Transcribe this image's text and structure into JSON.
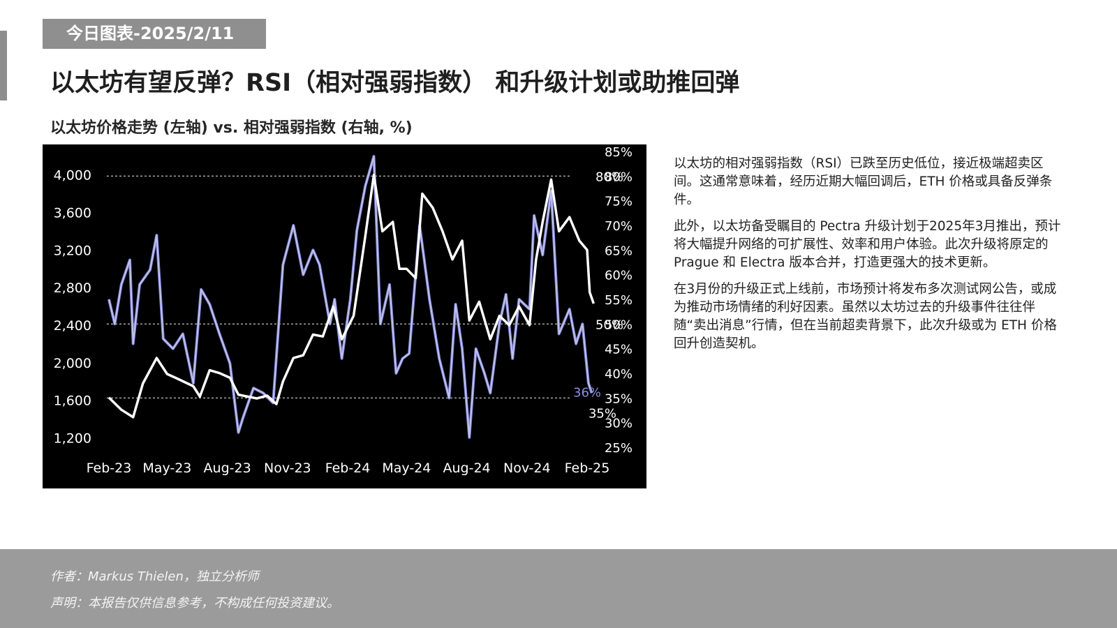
{
  "header": {
    "date_tag": "今日图表-2025/2/11",
    "title": "以太坊有望反弹？RSI（相对强弱指数） 和升级计划或助推回弹",
    "chart_subtitle": "以太坊价格走势 (左轴) vs. 相对强弱指数 (右轴, %)"
  },
  "body": {
    "paragraphs": [
      "以太坊的相对强弱指数（RSI）已跌至历史低位，接近极端超卖区间。这通常意味着，经历近期大幅回调后，ETH 价格或具备反弹条件。",
      "此外，以太坊备受瞩目的 Pectra 升级计划于2025年3月推出，预计将大幅提升网络的可扩展性、效率和用户体验。此次升级将原定的 Prague 和 Electra 版本合并，打造更强大的技术更新。",
      "在3月份的升级正式上线前，市场预计将发布多次测试网公告，或成为推动市场情绪的利好因素。虽然以太坊过去的升级事件往往伴随“卖出消息”行情，但在当前超卖背景下，此次升级或为 ETH 价格回升创造契机。"
    ]
  },
  "footer": {
    "author": "作者：Markus Thielen，独立分析师",
    "disclaimer": "声明：本报告仅供信息参考，不构成任何投资建议。"
  },
  "colors": {
    "chart_background": "#000000",
    "price_line": "#ffffff",
    "rsi_line": "#7b7fd6",
    "rsi_smoothed_line": "#c9cbe8",
    "rsi_label": "#8c8fe0",
    "tag_background": "#8f8f8f",
    "footer_background": "#9b9b9b"
  },
  "chart_data": {
    "type": "line",
    "title": "",
    "x_tick_labels": [
      "Feb-23",
      "May-23",
      "Aug-23",
      "Nov-23",
      "Feb-24",
      "May-24",
      "Aug-24",
      "Nov-24",
      "Feb-25"
    ],
    "x_range": [
      "2023-02",
      "2025-02"
    ],
    "left_axis": {
      "ticks": [
        1200,
        1600,
        2000,
        2400,
        2800,
        3200,
        3600,
        4000
      ],
      "tick_labels": [
        "1,200",
        "1,600",
        "2,000",
        "2,400",
        "2,800",
        "3,200",
        "3,600",
        "4,000"
      ],
      "ylim": [
        1100,
        4250
      ]
    },
    "right_axis": {
      "ticks": [
        25,
        30,
        35,
        40,
        45,
        50,
        55,
        60,
        65,
        70,
        75,
        80,
        85
      ],
      "tick_labels": [
        "25%",
        "30%",
        "35%",
        "40%",
        "45%",
        "50%",
        "55%",
        "60%",
        "65%",
        "70%",
        "75%",
        "80%",
        "85%"
      ],
      "ylim": [
        25,
        85
      ]
    },
    "reference_lines": [
      {
        "axis": "right",
        "value": 80,
        "label": "80%"
      },
      {
        "axis": "right",
        "value": 50,
        "label": "50%"
      },
      {
        "axis": "right",
        "value": 35,
        "label": "35%"
      }
    ],
    "end_annotation": {
      "series": "RSI",
      "value": 36,
      "label": "36%"
    },
    "grid": false,
    "legend": "none",
    "series": [
      {
        "axis": "left",
        "style": "white",
        "points": [
          [
            "2023-02-01",
            1630
          ],
          [
            "2023-02-20",
            1500
          ],
          [
            "2023-03-10",
            1420
          ],
          [
            "2023-03-25",
            1780
          ],
          [
            "2023-04-15",
            2050
          ],
          [
            "2023-05-01",
            1880
          ],
          [
            "2023-05-20",
            1820
          ],
          [
            "2023-06-10",
            1750
          ],
          [
            "2023-06-20",
            1640
          ],
          [
            "2023-07-05",
            1920
          ],
          [
            "2023-07-20",
            1890
          ],
          [
            "2023-08-05",
            1840
          ],
          [
            "2023-08-18",
            1660
          ],
          [
            "2023-09-01",
            1640
          ],
          [
            "2023-09-15",
            1620
          ],
          [
            "2023-10-01",
            1650
          ],
          [
            "2023-10-15",
            1560
          ],
          [
            "2023-10-25",
            1800
          ],
          [
            "2023-11-10",
            2050
          ],
          [
            "2023-11-25",
            2080
          ],
          [
            "2023-12-10",
            2300
          ],
          [
            "2023-12-25",
            2280
          ],
          [
            "2024-01-10",
            2600
          ],
          [
            "2024-01-23",
            2250
          ],
          [
            "2024-02-10",
            2500
          ],
          [
            "2024-02-28",
            3350
          ],
          [
            "2024-03-12",
            4000
          ],
          [
            "2024-03-25",
            3400
          ],
          [
            "2024-04-10",
            3500
          ],
          [
            "2024-04-20",
            3000
          ],
          [
            "2024-05-01",
            3000
          ],
          [
            "2024-05-15",
            2900
          ],
          [
            "2024-05-25",
            3800
          ],
          [
            "2024-06-10",
            3650
          ],
          [
            "2024-06-25",
            3400
          ],
          [
            "2024-07-10",
            3100
          ],
          [
            "2024-07-25",
            3300
          ],
          [
            "2024-08-05",
            2450
          ],
          [
            "2024-08-20",
            2650
          ],
          [
            "2024-09-06",
            2250
          ],
          [
            "2024-09-20",
            2500
          ],
          [
            "2024-10-05",
            2400
          ],
          [
            "2024-10-20",
            2600
          ],
          [
            "2024-11-05",
            2400
          ],
          [
            "2024-11-15",
            3100
          ],
          [
            "2024-11-25",
            3500
          ],
          [
            "2024-12-08",
            3950
          ],
          [
            "2024-12-20",
            3400
          ],
          [
            "2025-01-05",
            3550
          ],
          [
            "2025-01-20",
            3300
          ],
          [
            "2025-02-01",
            3200
          ],
          [
            "2025-02-05",
            2750
          ],
          [
            "2025-02-11",
            2630
          ]
        ]
      },
      {
        "axis": "right",
        "style": "blue-with-light-overlay",
        "points": [
          [
            "2023-02-01",
            55
          ],
          [
            "2023-02-10",
            50
          ],
          [
            "2023-02-20",
            58
          ],
          [
            "2023-03-05",
            63
          ],
          [
            "2023-03-10",
            46
          ],
          [
            "2023-03-20",
            58
          ],
          [
            "2023-04-05",
            61
          ],
          [
            "2023-04-15",
            68
          ],
          [
            "2023-04-25",
            47
          ],
          [
            "2023-05-10",
            45
          ],
          [
            "2023-05-25",
            48
          ],
          [
            "2023-06-10",
            38
          ],
          [
            "2023-06-22",
            57
          ],
          [
            "2023-07-05",
            54
          ],
          [
            "2023-07-20",
            48
          ],
          [
            "2023-08-05",
            42
          ],
          [
            "2023-08-18",
            28
          ],
          [
            "2023-08-25",
            31
          ],
          [
            "2023-09-10",
            37
          ],
          [
            "2023-09-25",
            36
          ],
          [
            "2023-10-10",
            34
          ],
          [
            "2023-10-25",
            62
          ],
          [
            "2023-11-10",
            70
          ],
          [
            "2023-11-25",
            60
          ],
          [
            "2023-12-10",
            65
          ],
          [
            "2023-12-20",
            62
          ],
          [
            "2024-01-05",
            50
          ],
          [
            "2024-01-12",
            55
          ],
          [
            "2024-01-23",
            43
          ],
          [
            "2024-02-05",
            55
          ],
          [
            "2024-02-15",
            69
          ],
          [
            "2024-02-28",
            78
          ],
          [
            "2024-03-12",
            84
          ],
          [
            "2024-03-22",
            50
          ],
          [
            "2024-04-05",
            58
          ],
          [
            "2024-04-15",
            40
          ],
          [
            "2024-04-25",
            43
          ],
          [
            "2024-05-05",
            44
          ],
          [
            "2024-05-21",
            70
          ],
          [
            "2024-06-05",
            55
          ],
          [
            "2024-06-20",
            43
          ],
          [
            "2024-07-05",
            35
          ],
          [
            "2024-07-15",
            54
          ],
          [
            "2024-07-25",
            45
          ],
          [
            "2024-08-05",
            27
          ],
          [
            "2024-08-15",
            45
          ],
          [
            "2024-08-28",
            40
          ],
          [
            "2024-09-06",
            36
          ],
          [
            "2024-09-20",
            50
          ],
          [
            "2024-09-30",
            56
          ],
          [
            "2024-10-10",
            43
          ],
          [
            "2024-10-20",
            55
          ],
          [
            "2024-11-05",
            53
          ],
          [
            "2024-11-12",
            72
          ],
          [
            "2024-11-25",
            64
          ],
          [
            "2024-12-08",
            77
          ],
          [
            "2024-12-20",
            48
          ],
          [
            "2025-01-05",
            53
          ],
          [
            "2025-01-15",
            46
          ],
          [
            "2025-01-25",
            50
          ],
          [
            "2025-02-03",
            38
          ],
          [
            "2025-02-08",
            36
          ]
        ]
      }
    ]
  }
}
